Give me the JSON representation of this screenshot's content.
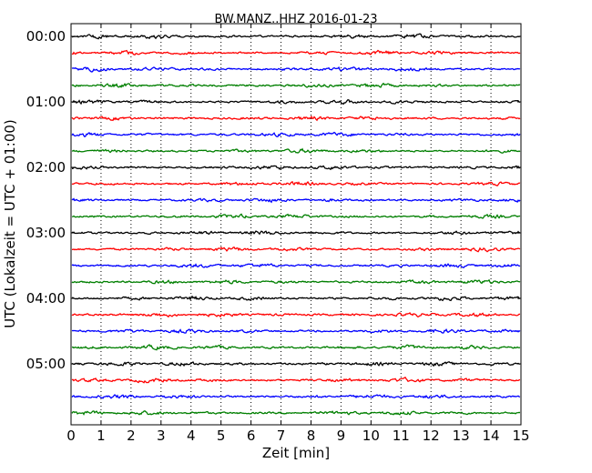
{
  "chart_data": {
    "type": "line",
    "title": "BW.MANZ..HHZ 2016-01-23",
    "xlabel": "Zeit  [min]",
    "ylabel": "UTC (Lokalzeit = UTC + 01:00)",
    "xlim": [
      0,
      15
    ],
    "x_ticks": [
      "0",
      "1",
      "2",
      "3",
      "4",
      "5",
      "6",
      "7",
      "8",
      "9",
      "10",
      "11",
      "12",
      "13",
      "14",
      "15"
    ],
    "y_ticks": [
      "00:00",
      "01:00",
      "02:00",
      "03:00",
      "04:00",
      "05:00"
    ],
    "trace_interval_minutes": 15,
    "trace_count": 24,
    "trace_colors": [
      "#000000",
      "#ff0000",
      "#0000ff",
      "#007f00"
    ],
    "grid": "vertical dotted at each minute"
  }
}
